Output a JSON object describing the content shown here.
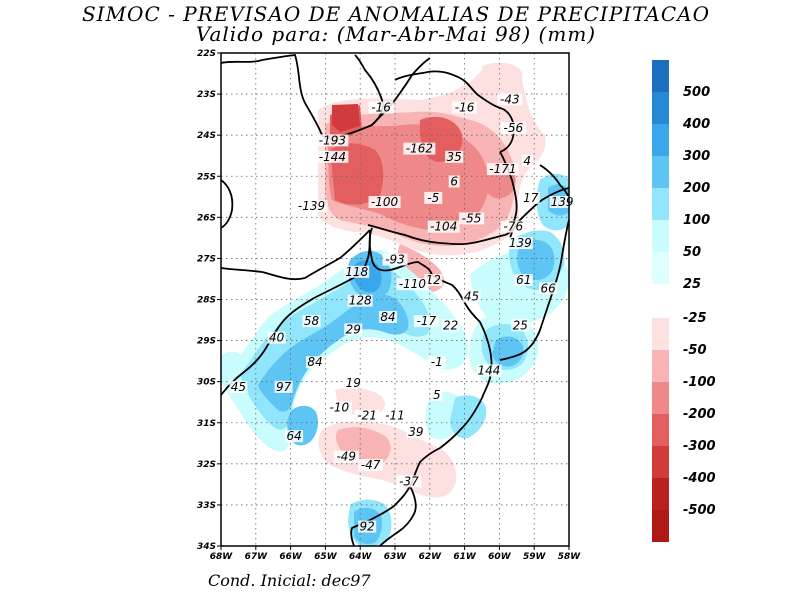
{
  "title_line1": "SIMOC - PREVISAO DE ANOMALIAS DE PRECIPITACAO",
  "title_line2": "Valido para: (Mar-Abr-Mai 98) (mm)",
  "footer": "Cond. Inicial: dec97",
  "colors": {
    "pos": [
      "#c9fdfd",
      "#91e6fb",
      "#5dc4f4",
      "#3aa6ec",
      "#2789d5",
      "#1b6fbe"
    ],
    "neg": [
      "#fde0e0",
      "#f8b4b4",
      "#ef8888",
      "#e35f5f",
      "#d23b3b",
      "#bc1f1f"
    ]
  },
  "colorbar": {
    "positive_labels": [
      "500",
      "400",
      "300",
      "200",
      "100",
      "50",
      "25"
    ],
    "negative_labels": [
      "-25",
      "-50",
      "-100",
      "-200",
      "-300",
      "-400",
      "-500"
    ]
  },
  "axes": {
    "lat_labels": [
      "22S",
      "23S",
      "24S",
      "25S",
      "26S",
      "27S",
      "28S",
      "29S",
      "30S",
      "31S",
      "32S",
      "33S",
      "34S"
    ],
    "lon_labels": [
      "68W",
      "67W",
      "66W",
      "65W",
      "64W",
      "63W",
      "62W",
      "61W",
      "60W",
      "59W",
      "58W"
    ]
  },
  "values": [
    {
      "t": "-43",
      "lon": -59.7,
      "lat": -23.2
    },
    {
      "t": "-16",
      "lon": -63.4,
      "lat": -23.4
    },
    {
      "t": "-16",
      "lon": -61.0,
      "lat": -23.4
    },
    {
      "t": "-56",
      "lon": -59.6,
      "lat": -23.9
    },
    {
      "t": "-193",
      "lon": -64.8,
      "lat": -24.2
    },
    {
      "t": "-162",
      "lon": -62.3,
      "lat": -24.4
    },
    {
      "t": "35",
      "lon": -61.3,
      "lat": -24.6
    },
    {
      "t": "4",
      "lon": -59.2,
      "lat": -24.7
    },
    {
      "t": "-144",
      "lon": -64.8,
      "lat": -24.6
    },
    {
      "t": "-171",
      "lon": -59.9,
      "lat": -24.9
    },
    {
      "t": "6",
      "lon": -61.3,
      "lat": -25.2
    },
    {
      "t": "-5",
      "lon": -61.9,
      "lat": -25.6
    },
    {
      "t": "17",
      "lon": -59.1,
      "lat": -25.6
    },
    {
      "t": "139",
      "lon": -58.2,
      "lat": -25.7
    },
    {
      "t": "-100",
      "lon": -63.3,
      "lat": -25.7
    },
    {
      "t": "-139",
      "lon": -65.4,
      "lat": -25.8
    },
    {
      "t": "-55",
      "lon": -60.8,
      "lat": -26.1
    },
    {
      "t": "-76",
      "lon": -59.6,
      "lat": -26.3
    },
    {
      "t": "-104",
      "lon": -61.6,
      "lat": -26.3
    },
    {
      "t": "139",
      "lon": -59.4,
      "lat": -26.7
    },
    {
      "t": "-93",
      "lon": -63.0,
      "lat": -27.1
    },
    {
      "t": "118",
      "lon": -64.1,
      "lat": -27.4
    },
    {
      "t": "61",
      "lon": -59.3,
      "lat": -27.6
    },
    {
      "t": "12",
      "lon": -61.9,
      "lat": -27.6
    },
    {
      "t": "-110",
      "lon": -62.5,
      "lat": -27.7
    },
    {
      "t": "66",
      "lon": -58.6,
      "lat": -27.8
    },
    {
      "t": "45",
      "lon": -60.8,
      "lat": -28.0
    },
    {
      "t": "128",
      "lon": -64.0,
      "lat": -28.1
    },
    {
      "t": "84",
      "lon": -63.2,
      "lat": -28.5
    },
    {
      "t": "-17",
      "lon": -62.1,
      "lat": -28.6
    },
    {
      "t": "58",
      "lon": -65.4,
      "lat": -28.6
    },
    {
      "t": "22",
      "lon": -61.4,
      "lat": -28.7
    },
    {
      "t": "25",
      "lon": -59.4,
      "lat": -28.7
    },
    {
      "t": "29",
      "lon": -64.2,
      "lat": -28.8
    },
    {
      "t": "40",
      "lon": -66.4,
      "lat": -29.0
    },
    {
      "t": "-1",
      "lon": -61.8,
      "lat": -29.6
    },
    {
      "t": "84",
      "lon": -65.3,
      "lat": -29.6
    },
    {
      "t": "144",
      "lon": -60.3,
      "lat": -29.8
    },
    {
      "t": "19",
      "lon": -64.2,
      "lat": -30.1
    },
    {
      "t": "97",
      "lon": -66.2,
      "lat": -30.2
    },
    {
      "t": "45",
      "lon": -67.5,
      "lat": -30.2
    },
    {
      "t": "5",
      "lon": -61.8,
      "lat": -30.4
    },
    {
      "t": "-10",
      "lon": -64.6,
      "lat": -30.7
    },
    {
      "t": "-21",
      "lon": -63.8,
      "lat": -30.9
    },
    {
      "t": "-11",
      "lon": -63.0,
      "lat": -30.9
    },
    {
      "t": "39",
      "lon": -62.4,
      "lat": -31.3
    },
    {
      "t": "64",
      "lon": -65.9,
      "lat": -31.4
    },
    {
      "t": "-49",
      "lon": -64.4,
      "lat": -31.9
    },
    {
      "t": "-47",
      "lon": -63.7,
      "lat": -32.1
    },
    {
      "t": "-37",
      "lon": -62.6,
      "lat": -32.5
    },
    {
      "t": "92",
      "lon": -63.8,
      "lat": -33.6
    }
  ]
}
